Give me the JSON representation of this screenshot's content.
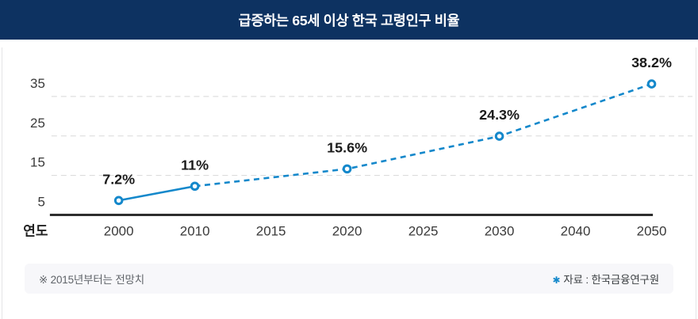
{
  "header": {
    "title": "급증하는 65세 이상 한국 고령인구 비율"
  },
  "chart_data": {
    "type": "line",
    "title": "급증하는 65세 이상 한국 고령인구 비율",
    "x_axis_label": "연도",
    "x_tick_labels": [
      "2000",
      "2010",
      "2015",
      "2020",
      "2025",
      "2030",
      "2040",
      "2050"
    ],
    "y_ticks": [
      5,
      15,
      25,
      35
    ],
    "ylim": [
      5,
      40
    ],
    "grid": "horizontal-dashed",
    "legend": "none",
    "series": [
      {
        "name": "65세 이상 고령인구 비율",
        "points": [
          {
            "x": "2000",
            "y": 7.2,
            "label": "7.2%"
          },
          {
            "x": "2010",
            "y": 11,
            "label": "11%"
          },
          {
            "x": "2020",
            "y": 15.6,
            "label": "15.6%"
          },
          {
            "x": "2030",
            "y": 24.3,
            "label": "24.3%"
          },
          {
            "x": "2050",
            "y": 38.2,
            "label": "38.2%"
          }
        ],
        "solid_until_index": 1,
        "style_note": "solid line 2000-2010 (actual), dashed line after 2010 (forecast)"
      }
    ],
    "colors": {
      "line": "#1488cb",
      "header_bg": "#0d3261",
      "grid": "#d8d8d8",
      "axis": "#2d2d2d",
      "accent": "#1488cb"
    }
  },
  "footer": {
    "note": "※ 2015년부터는 전망치",
    "source_marker": "✱",
    "source_text": "자료 : 한국금융연구원"
  }
}
